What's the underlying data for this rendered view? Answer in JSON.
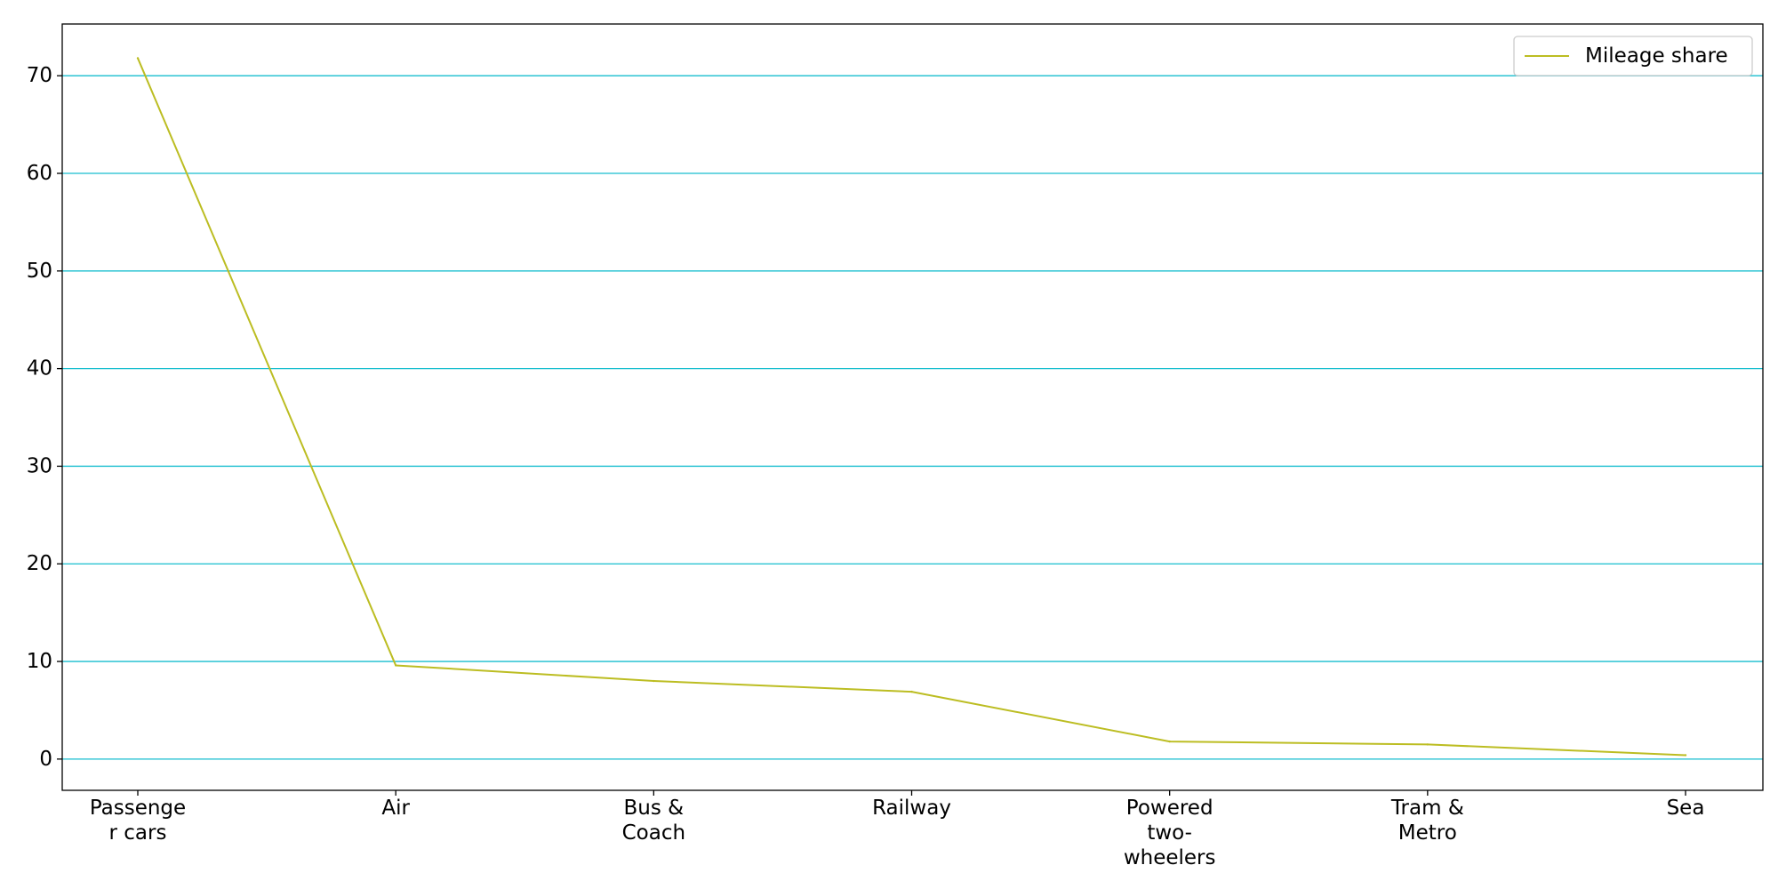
{
  "chart_data": {
    "type": "line",
    "categories": [
      [
        "Passenge",
        "r cars"
      ],
      [
        "Air"
      ],
      [
        "Bus &",
        "Coach"
      ],
      [
        "Railway"
      ],
      [
        "Powered",
        "two-",
        "wheelers"
      ],
      [
        "Tram &",
        "Metro"
      ],
      [
        "Sea"
      ]
    ],
    "series": [
      {
        "name": "Mileage share",
        "values": [
          71.8,
          9.6,
          8.0,
          6.9,
          1.8,
          1.5,
          0.4
        ]
      }
    ],
    "yticks": [
      "0",
      "10",
      "20",
      "30",
      "40",
      "50",
      "60",
      "70"
    ],
    "ylim": [
      -3.2,
      75.3
    ],
    "grid": "horizontal",
    "legend": "top-right",
    "title": "",
    "xlabel": "",
    "ylabel": "",
    "colors": {
      "line": "#bcbd22",
      "grid": "#17becf",
      "axes": "#000000",
      "legend_border": "#cccccc"
    }
  }
}
